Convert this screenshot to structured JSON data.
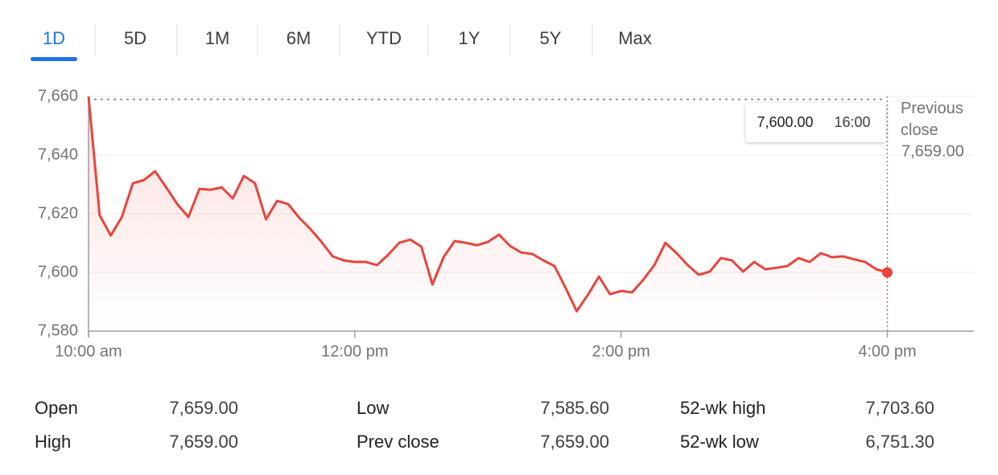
{
  "tabs": {
    "items": [
      "1D",
      "5D",
      "1M",
      "6M",
      "YTD",
      "1Y",
      "5Y",
      "Max"
    ],
    "active": 0
  },
  "chart_data": {
    "type": "line",
    "color": "#e8453c",
    "x": [
      10,
      10.0833,
      10.1667,
      10.25,
      10.3333,
      10.4167,
      10.5,
      10.5833,
      10.6667,
      10.75,
      10.8333,
      10.9167,
      11,
      11.0833,
      11.1667,
      11.25,
      11.3333,
      11.4167,
      11.5,
      11.5833,
      11.6667,
      11.75,
      11.8333,
      11.9167,
      12,
      12.0833,
      12.1667,
      12.25,
      12.3333,
      12.4167,
      12.5,
      12.5833,
      12.6667,
      12.75,
      12.8333,
      12.9167,
      13,
      13.0833,
      13.1667,
      13.25,
      13.3333,
      13.4167,
      13.5,
      13.5833,
      13.6667,
      13.75,
      13.8333,
      13.9167,
      14,
      14.0833,
      14.1667,
      14.25,
      14.3333,
      14.4167,
      14.5,
      14.5833,
      14.6667,
      14.75,
      14.8333,
      14.9167,
      15,
      15.0833,
      15.1667,
      15.25,
      15.3333,
      15.4167,
      15.5,
      15.5833,
      15.6667,
      15.75,
      15.8333,
      15.9167,
      16
    ],
    "values": [
      7660,
      7619.5,
      7612.6,
      7618.9,
      7630.4,
      7631.5,
      7634.5,
      7629,
      7623.3,
      7618.9,
      7628.5,
      7628.2,
      7629,
      7625.2,
      7632.9,
      7630.4,
      7618.1,
      7624.4,
      7623.3,
      7618.6,
      7614.8,
      7610.4,
      7605.5,
      7604.1,
      7603.6,
      7603.6,
      7602.5,
      7606,
      7610.1,
      7611.2,
      7608.8,
      7595.9,
      7605.2,
      7610.7,
      7610.1,
      7609.3,
      7610.4,
      7612.9,
      7609,
      7606.8,
      7606.3,
      7604.1,
      7602.2,
      7594.8,
      7586.8,
      7592.3,
      7598.6,
      7592.6,
      7593.7,
      7593.2,
      7597.5,
      7602.5,
      7610.1,
      7606.6,
      7602.5,
      7599.2,
      7600.3,
      7604.9,
      7604.1,
      7600.3,
      7603.6,
      7601.1,
      7601.6,
      7602.2,
      7604.9,
      7603.6,
      7606.6,
      7605.2,
      7605.5,
      7604.5,
      7603.6,
      7601.1,
      7600
    ],
    "xlim": [
      10,
      16.65
    ],
    "xticks": [
      {
        "value": 10,
        "label": "10:00 am"
      },
      {
        "value": 12,
        "label": "12:00 pm"
      },
      {
        "value": 14,
        "label": "2:00 pm"
      },
      {
        "value": 16,
        "label": "4:00 pm"
      }
    ],
    "ylim": [
      7580,
      7660
    ],
    "yticks": [
      {
        "value": 7580,
        "label": "7,580"
      },
      {
        "value": 7600,
        "label": "7,600"
      },
      {
        "value": 7620,
        "label": "7,620"
      },
      {
        "value": 7640,
        "label": "7,640"
      },
      {
        "value": 7660,
        "label": "7,660"
      }
    ],
    "grid": true,
    "tooltip": {
      "value": "7,600.00",
      "time": "16:00"
    },
    "previous_close": {
      "label": "Previous close",
      "value": 7659,
      "value_label": "7,659.00"
    }
  },
  "stats": [
    [
      {
        "label": "Open",
        "value": "7,659.00"
      },
      {
        "label": "High",
        "value": "7,659.00"
      }
    ],
    [
      {
        "label": "Low",
        "value": "7,585.60"
      },
      {
        "label": "Prev close",
        "value": "7,659.00"
      }
    ],
    [
      {
        "label": "52-wk high",
        "value": "7,703.60"
      },
      {
        "label": "52-wk low",
        "value": "6,751.30"
      }
    ]
  ]
}
